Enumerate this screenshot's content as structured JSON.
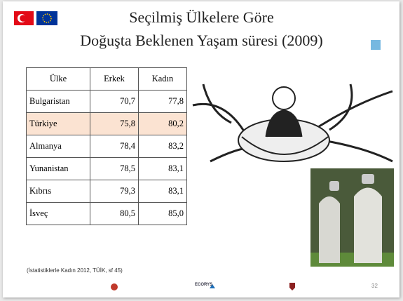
{
  "header": {
    "title_line1": "Seçilmiş Ülkelere Göre",
    "title_line2": "Doğuşta Beklenen Yaşam süresi (2009)"
  },
  "table": {
    "columns": [
      "Ülke",
      "Erkek",
      "Kadın"
    ],
    "rows": [
      [
        "Bulgaristan",
        "70,7",
        "77,8"
      ],
      [
        "Türkiye",
        "75,8",
        "80,2"
      ],
      [
        "Almanya",
        "78,4",
        "83,2"
      ],
      [
        "Yunanistan",
        "78,5",
        "83,1"
      ],
      [
        "Kıbrıs",
        "79,3",
        "83,1"
      ],
      [
        "İsveç",
        "80,5",
        "85,0"
      ]
    ]
  },
  "footer": {
    "source": "(İstatistiklerle Kadın 2012, TÜİK, sf 45)",
    "logo": "ECORYS",
    "page": "32"
  }
}
